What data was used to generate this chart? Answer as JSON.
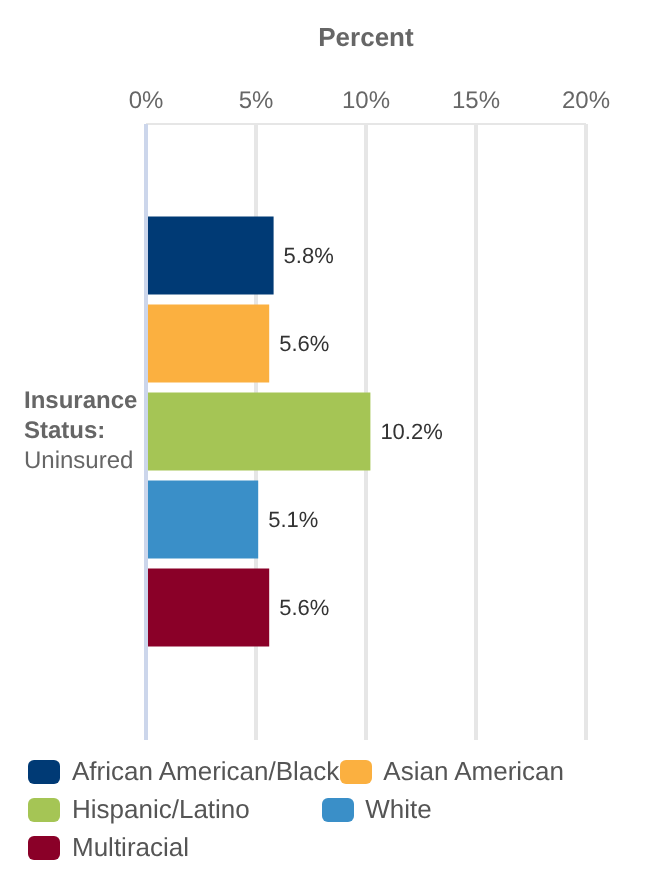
{
  "chart_data": {
    "type": "bar",
    "orientation": "horizontal",
    "xlabel": "Percent",
    "categories": [
      "Insurance Status: Uninsured"
    ],
    "series": [
      {
        "name": "African American/Black",
        "color": "#003a75",
        "values": [
          5.8
        ],
        "value_labels": [
          "5.8%"
        ]
      },
      {
        "name": "Asian American",
        "color": "#fbb040",
        "values": [
          5.6
        ],
        "value_labels": [
          "5.6%"
        ]
      },
      {
        "name": "Hispanic/Latino",
        "color": "#a5c555",
        "values": [
          10.2
        ],
        "value_labels": [
          "10.2%"
        ]
      },
      {
        "name": "White",
        "color": "#3a8fc8",
        "values": [
          5.1
        ],
        "value_labels": [
          "5.1%"
        ]
      },
      {
        "name": "Multiracial",
        "color": "#8a0028",
        "values": [
          5.6
        ],
        "value_labels": [
          "5.6%"
        ]
      }
    ],
    "xlim": [
      0,
      20
    ],
    "xticks": [
      {
        "value": 0,
        "label": "0%"
      },
      {
        "value": 5,
        "label": "5%"
      },
      {
        "value": 10,
        "label": "10%"
      },
      {
        "value": 15,
        "label": "15%"
      },
      {
        "value": 20,
        "label": "20%"
      }
    ],
    "grid": "x",
    "legend": "bottom"
  }
}
